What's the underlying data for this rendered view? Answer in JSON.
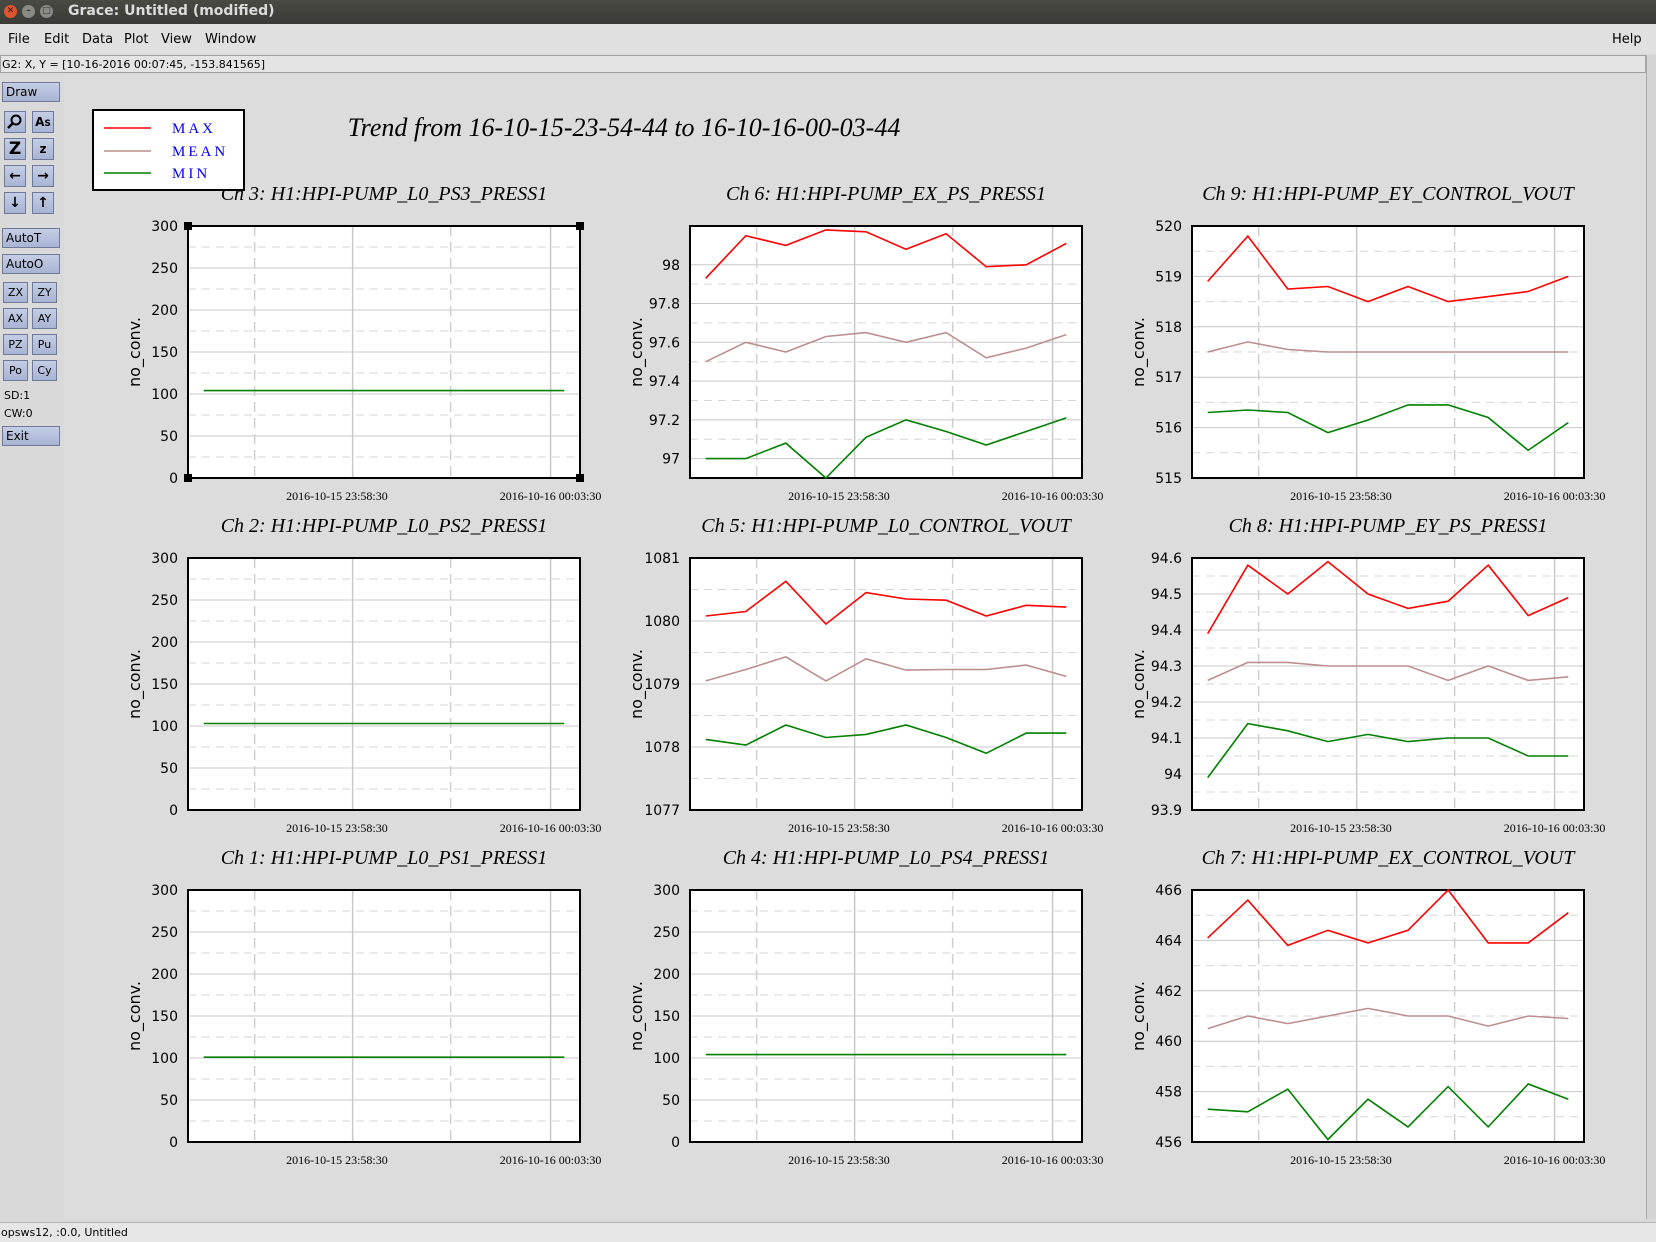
{
  "window": {
    "title": "Grace: Untitled (modified)"
  },
  "menu": {
    "file": "File",
    "edit": "Edit",
    "data": "Data",
    "plot": "Plot",
    "view": "View",
    "window": "Window",
    "help": "Help"
  },
  "coord_readout": "G2: X, Y = [10-16-2016 00:07:45, -153.841565]",
  "toolbar": {
    "draw": "Draw",
    "autot": "AutoT",
    "autoo": "AutoO",
    "zx": "ZX",
    "zy": "ZY",
    "ax": "AX",
    "ay": "AY",
    "pz": "PZ",
    "pu": "Pu",
    "po": "Po",
    "cy": "Cy",
    "sd": "SD:1",
    "cw": "CW:0",
    "exit": "Exit",
    "icons": [
      "zoom-icon",
      "autoscale-as-icon",
      "zoom-in-icon",
      "zoom-out-icon",
      "shift-left-icon",
      "shift-right-icon",
      "shift-down-icon",
      "shift-up-icon"
    ]
  },
  "statusbar": "opsws12, :0.0, Untitled",
  "colors": {
    "max": "#ff0000",
    "mean": "#bc8f8f",
    "min": "#008000",
    "legend_text": "#0000ff"
  },
  "chart_data": {
    "type": "line",
    "title": "Trend from 16-10-15-23-54-44 to 16-10-16-00-03-44",
    "legend": [
      "MAX",
      "MEAN",
      "MIN"
    ],
    "legend_position": "top-left",
    "x_tick_labels": [
      "2016-10-15 23:58:30",
      "2016-10-16 00:03:30"
    ],
    "x_tick_times": [
      0.38,
      0.925
    ],
    "ylabel": "no_conv.",
    "panels": [
      {
        "title": "Ch 3: H1:HPI-PUMP_L0_PS3_PRESS1",
        "ylim": [
          0,
          300
        ],
        "yticks": [
          0,
          50,
          100,
          150,
          200,
          250,
          300
        ],
        "ytick_labels": [
          "0",
          "50",
          "100",
          "150",
          "200",
          "250",
          "300"
        ],
        "series": [
          {
            "name": "MIN",
            "values": [
              104,
              104,
              104,
              104,
              104,
              104,
              104,
              104,
              104,
              104
            ]
          }
        ]
      },
      {
        "title": "Ch 6: H1:HPI-PUMP_EX_PS_PRESS1",
        "ylim": [
          96.9,
          98.2
        ],
        "yticks": [
          97,
          97.2,
          97.4,
          97.6,
          97.8,
          98
        ],
        "ytick_labels": [
          "97",
          "97.2",
          "97.4",
          "97.6",
          "97.8",
          "98"
        ],
        "series": [
          {
            "name": "MAX",
            "values": [
              97.93,
              98.15,
              98.1,
              98.18,
              98.17,
              98.08,
              98.16,
              97.99,
              98.0,
              98.11
            ]
          },
          {
            "name": "MEAN",
            "values": [
              97.5,
              97.6,
              97.55,
              97.63,
              97.65,
              97.6,
              97.65,
              97.52,
              97.57,
              97.64
            ]
          },
          {
            "name": "MIN",
            "values": [
              97.0,
              97.0,
              97.08,
              96.9,
              97.11,
              97.2,
              97.14,
              97.07,
              97.14,
              97.21
            ]
          }
        ]
      },
      {
        "title": "Ch 9: H1:HPI-PUMP_EY_CONTROL_VOUT",
        "ylim": [
          515,
          520
        ],
        "yticks": [
          515,
          516,
          517,
          518,
          519,
          520
        ],
        "ytick_labels": [
          "515",
          "516",
          "517",
          "518",
          "519",
          "520"
        ],
        "series": [
          {
            "name": "MAX",
            "values": [
              518.9,
              519.8,
              518.75,
              518.8,
              518.5,
              518.8,
              518.5,
              518.6,
              518.7,
              519.0
            ]
          },
          {
            "name": "MEAN",
            "values": [
              517.5,
              517.7,
              517.55,
              517.5,
              517.5,
              517.5,
              517.5,
              517.5,
              517.5,
              517.5
            ]
          },
          {
            "name": "MIN",
            "values": [
              516.3,
              516.35,
              516.3,
              515.9,
              516.15,
              516.45,
              516.45,
              516.2,
              515.55,
              516.1
            ]
          }
        ]
      },
      {
        "title": "Ch 2: H1:HPI-PUMP_L0_PS2_PRESS1",
        "ylim": [
          0,
          300
        ],
        "yticks": [
          0,
          50,
          100,
          150,
          200,
          250,
          300
        ],
        "ytick_labels": [
          "0",
          "50",
          "100",
          "150",
          "200",
          "250",
          "300"
        ],
        "series": [
          {
            "name": "MIN",
            "values": [
              103,
              103,
              103,
              103,
              103,
              103,
              103,
              103,
              103,
              103
            ]
          }
        ]
      },
      {
        "title": "Ch 5: H1:HPI-PUMP_L0_CONTROL_VOUT",
        "ylim": [
          1077,
          1081
        ],
        "yticks": [
          1077,
          1078,
          1079,
          1080,
          1081
        ],
        "ytick_labels": [
          "1077",
          "1078",
          "1079",
          "1080",
          "1081"
        ],
        "series": [
          {
            "name": "MAX",
            "values": [
              1080.08,
              1080.15,
              1080.63,
              1079.95,
              1080.45,
              1080.35,
              1080.33,
              1080.08,
              1080.25,
              1080.22
            ]
          },
          {
            "name": "MEAN",
            "values": [
              1079.05,
              1079.23,
              1079.43,
              1079.05,
              1079.4,
              1079.22,
              1079.23,
              1079.23,
              1079.3,
              1079.12
            ]
          },
          {
            "name": "MIN",
            "values": [
              1078.12,
              1078.03,
              1078.35,
              1078.15,
              1078.2,
              1078.35,
              1078.15,
              1077.9,
              1078.22,
              1078.22
            ]
          }
        ]
      },
      {
        "title": "Ch 8: H1:HPI-PUMP_EY_PS_PRESS1",
        "ylim": [
          93.9,
          94.6
        ],
        "yticks": [
          93.9,
          94,
          94.1,
          94.2,
          94.3,
          94.4,
          94.5,
          94.6
        ],
        "ytick_labels": [
          "93.9",
          "94",
          "94.1",
          "94.2",
          "94.3",
          "94.4",
          "94.5",
          "94.6"
        ],
        "series": [
          {
            "name": "MAX",
            "values": [
              94.39,
              94.58,
              94.5,
              94.59,
              94.5,
              94.46,
              94.48,
              94.58,
              94.44,
              94.49
            ]
          },
          {
            "name": "MEAN",
            "values": [
              94.26,
              94.31,
              94.31,
              94.3,
              94.3,
              94.3,
              94.26,
              94.3,
              94.26,
              94.27
            ]
          },
          {
            "name": "MIN",
            "values": [
              93.99,
              94.14,
              94.12,
              94.09,
              94.11,
              94.09,
              94.1,
              94.1,
              94.05,
              94.05
            ]
          }
        ]
      },
      {
        "title": "Ch 1: H1:HPI-PUMP_L0_PS1_PRESS1",
        "ylim": [
          0,
          300
        ],
        "yticks": [
          0,
          50,
          100,
          150,
          200,
          250,
          300
        ],
        "ytick_labels": [
          "0",
          "50",
          "100",
          "150",
          "200",
          "250",
          "300"
        ],
        "series": [
          {
            "name": "MIN",
            "values": [
              101,
              101,
              101,
              101,
              101,
              101,
              101,
              101,
              101,
              101
            ]
          }
        ]
      },
      {
        "title": "Ch 4: H1:HPI-PUMP_L0_PS4_PRESS1",
        "ylim": [
          0,
          300
        ],
        "yticks": [
          0,
          50,
          100,
          150,
          200,
          250,
          300
        ],
        "ytick_labels": [
          "0",
          "50",
          "100",
          "150",
          "200",
          "250",
          "300"
        ],
        "series": [
          {
            "name": "MIN",
            "values": [
              104,
              104,
              104,
              104,
              104,
              104,
              104,
              104,
              104,
              104
            ]
          }
        ]
      },
      {
        "title": "Ch 7: H1:HPI-PUMP_EX_CONTROL_VOUT",
        "ylim": [
          456,
          466
        ],
        "yticks": [
          456,
          458,
          460,
          462,
          464,
          466
        ],
        "ytick_labels": [
          "456",
          "458",
          "460",
          "462",
          "464",
          "466"
        ],
        "series": [
          {
            "name": "MAX",
            "values": [
              464.1,
              465.6,
              463.8,
              464.4,
              463.9,
              464.4,
              466.0,
              463.9,
              463.9,
              465.1
            ]
          },
          {
            "name": "MEAN",
            "values": [
              460.5,
              461.0,
              460.7,
              461.0,
              461.3,
              461.0,
              461.0,
              460.6,
              461.0,
              460.9
            ]
          },
          {
            "name": "MIN",
            "values": [
              457.3,
              457.2,
              458.1,
              456.1,
              457.7,
              456.6,
              458.2,
              456.6,
              458.3,
              457.7
            ]
          }
        ]
      }
    ]
  }
}
